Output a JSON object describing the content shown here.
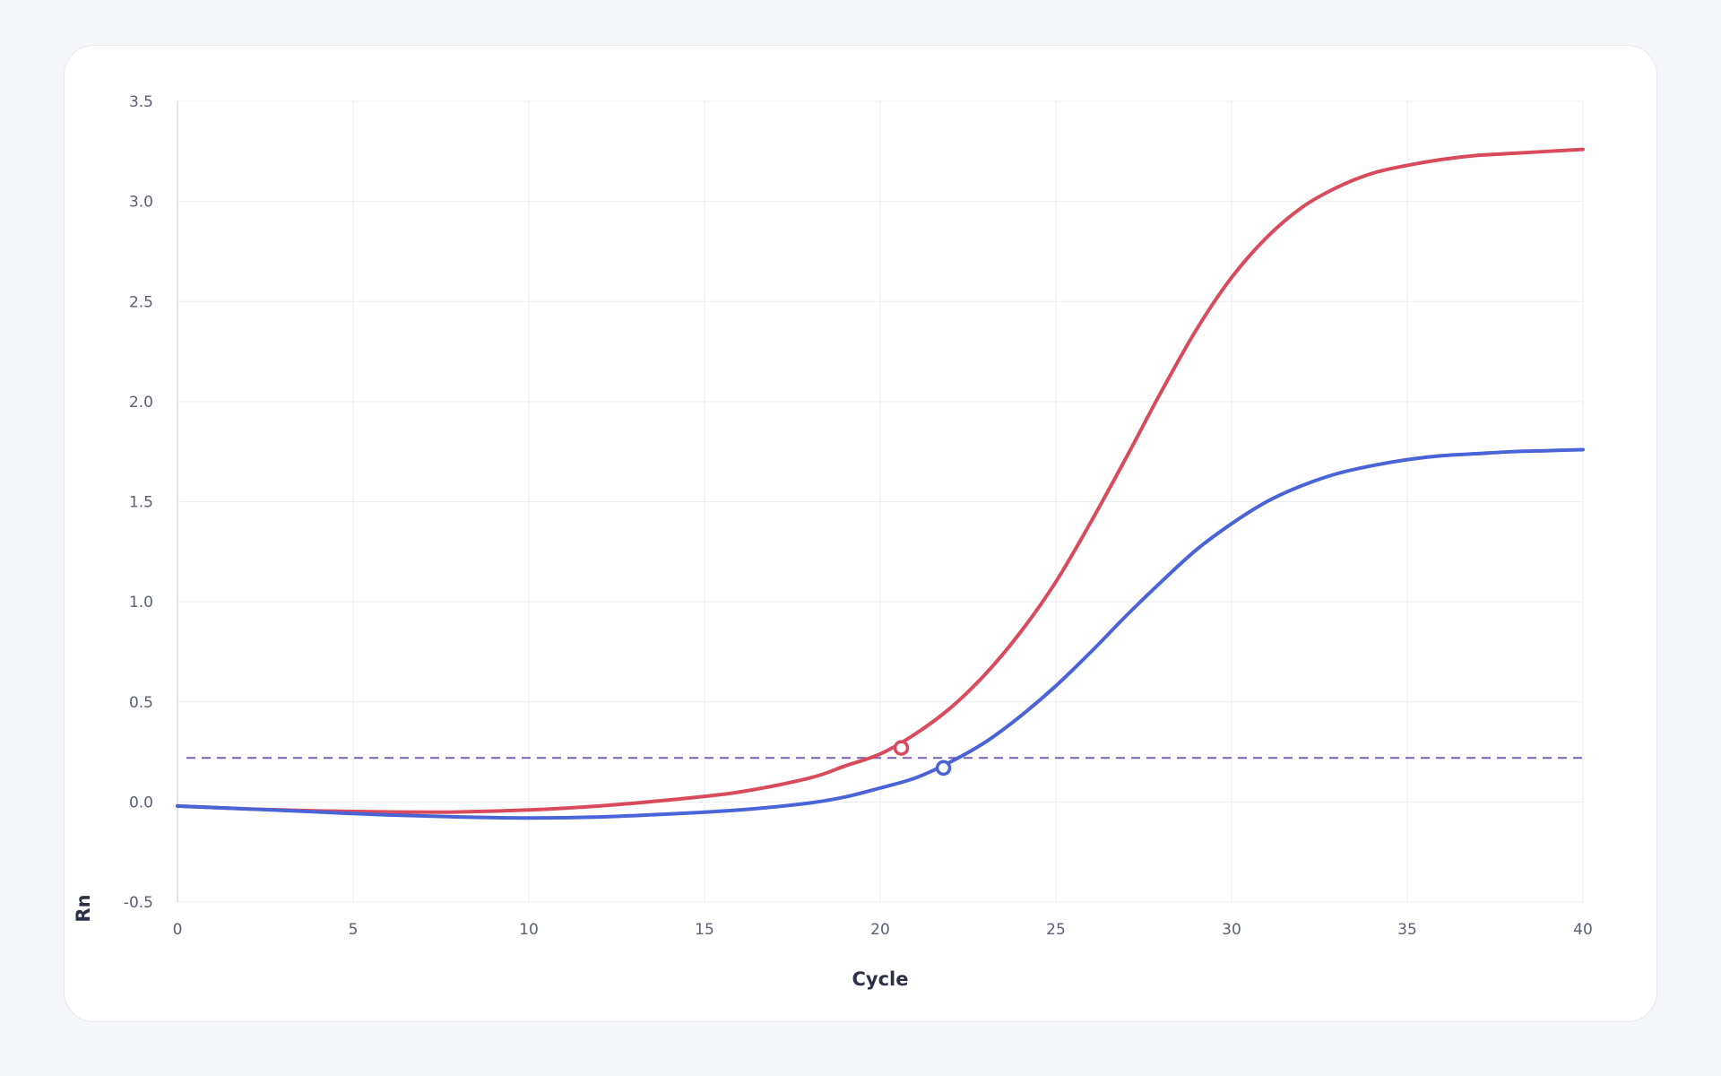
{
  "chart_data": {
    "type": "line",
    "title": "",
    "xlabel": "Cycle",
    "ylabel": "Rn",
    "xlim": [
      0,
      40
    ],
    "ylim": [
      -0.5,
      3.5
    ],
    "xticks": [
      0,
      5,
      10,
      15,
      20,
      25,
      30,
      35,
      40
    ],
    "yticks": [
      -0.5,
      0.0,
      0.5,
      1.0,
      1.5,
      2.0,
      2.5,
      3.0,
      3.5
    ],
    "xtick_labels": [
      "0",
      "5",
      "10",
      "15",
      "20",
      "25",
      "30",
      "35",
      "40"
    ],
    "ytick_labels": [
      "-0.5",
      "0.0",
      "0.5",
      "1.0",
      "1.5",
      "2.0",
      "2.5",
      "3.0",
      "3.5"
    ],
    "grid": true,
    "legend": "none",
    "threshold": {
      "y": 0.22,
      "color": "#7a5fb0",
      "style": "dashed"
    },
    "series": [
      {
        "color": "#d94b5c",
        "x": [
          0,
          2,
          4,
          6,
          8,
          10,
          12,
          14,
          16,
          18,
          19,
          20,
          21,
          22,
          23,
          24,
          25,
          26,
          27,
          28,
          29,
          30,
          31,
          32,
          33,
          34,
          35,
          36,
          37,
          38,
          39,
          40
        ],
        "y": [
          -0.02,
          -0.035,
          -0.045,
          -0.05,
          -0.05,
          -0.04,
          -0.02,
          0.01,
          0.05,
          0.12,
          0.18,
          0.24,
          0.34,
          0.47,
          0.64,
          0.85,
          1.1,
          1.4,
          1.72,
          2.05,
          2.36,
          2.62,
          2.82,
          2.97,
          3.07,
          3.14,
          3.18,
          3.21,
          3.23,
          3.24,
          3.25,
          3.26
        ],
        "ct_marker": {
          "x": 20.6,
          "y": 0.27
        }
      },
      {
        "color": "#4a63d6",
        "x": [
          0,
          2,
          4,
          6,
          8,
          10,
          12,
          14,
          16,
          18,
          19,
          20,
          21,
          22,
          23,
          24,
          25,
          26,
          27,
          28,
          29,
          30,
          31,
          32,
          33,
          34,
          35,
          36,
          37,
          38,
          39,
          40
        ],
        "y": [
          -0.02,
          -0.035,
          -0.05,
          -0.065,
          -0.075,
          -0.08,
          -0.075,
          -0.06,
          -0.04,
          -0.005,
          0.025,
          0.07,
          0.12,
          0.2,
          0.3,
          0.43,
          0.58,
          0.75,
          0.93,
          1.1,
          1.26,
          1.39,
          1.5,
          1.58,
          1.64,
          1.68,
          1.71,
          1.73,
          1.74,
          1.75,
          1.755,
          1.76
        ],
        "ct_marker": {
          "x": 21.8,
          "y": 0.17
        }
      }
    ]
  }
}
